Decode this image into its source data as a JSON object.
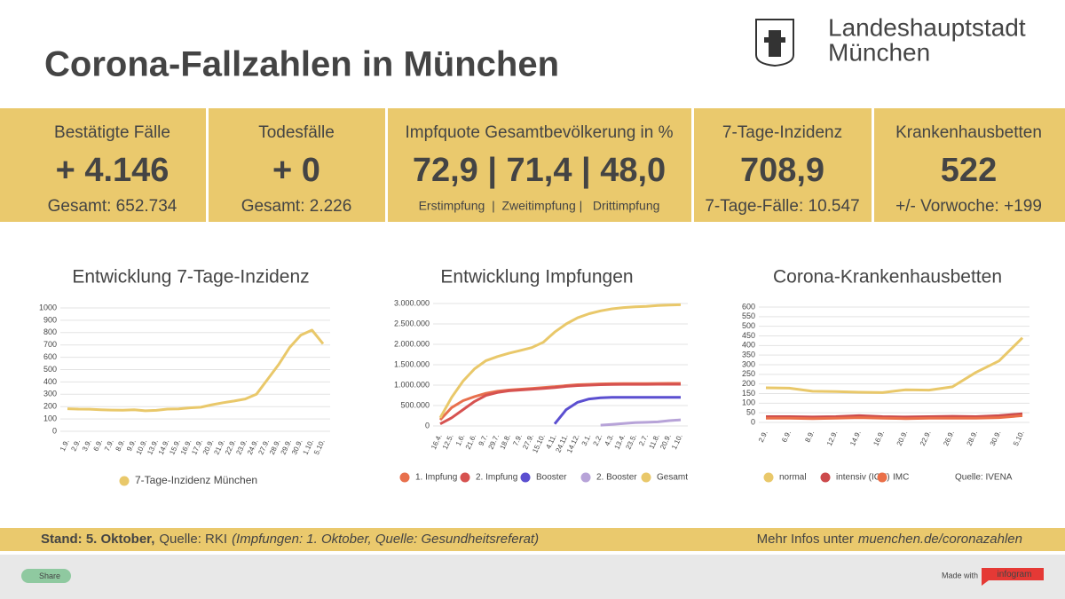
{
  "header": {
    "title": "Corona-Fallzahlen in München",
    "logo_line1": "Landeshauptstadt",
    "logo_line2": "München"
  },
  "kpis": [
    {
      "title": "Bestätigte Fälle",
      "value": "+ 4.146",
      "sub": "Gesamt: 652.734"
    },
    {
      "title": "Todesfälle",
      "value": "+ 0",
      "sub": "Gesamt: 2.226"
    },
    {
      "title": "Impfquote Gesamtbevölkerung in %",
      "value": "72,9 | 71,4 | 48,0",
      "sub": "Erstimpfung  |  Zweitimpfung |   Drittimpfung"
    },
    {
      "title": "7-Tage-Inzidenz",
      "value": "708,9",
      "sub": "7-Tage-Fälle: 10.547"
    },
    {
      "title": "Krankenhausbetten",
      "value": "522",
      "sub": "+/- Vorwoche: +199"
    }
  ],
  "chart_data": [
    {
      "type": "line",
      "title": "Entwicklung 7-Tage-Inzidenz",
      "categories": [
        "1.9.",
        "2.9.",
        "3.9.",
        "6.9.",
        "7.9.",
        "8.9.",
        "9.9.",
        "10.9.",
        "13.9.",
        "14.9.",
        "15.9.",
        "16.9.",
        "17.9.",
        "20.9.",
        "21.9.",
        "22.9.",
        "23.9.",
        "24.9.",
        "27.9.",
        "28.9.",
        "29.9.",
        "30.9.",
        "1.10.",
        "5.10."
      ],
      "series": [
        {
          "name": "7-Tage-Inzidenz München",
          "color": "#e9c86a",
          "values": [
            183,
            180,
            179,
            175,
            172,
            171,
            175,
            166,
            170,
            180,
            182,
            190,
            195,
            215,
            232,
            245,
            262,
            300,
            420,
            540,
            680,
            780,
            820,
            709
          ]
        }
      ],
      "ylim": [
        0,
        1000
      ],
      "yticks": [
        0,
        100,
        200,
        300,
        400,
        500,
        600,
        700,
        800,
        900,
        1000
      ],
      "grid": true
    },
    {
      "type": "line",
      "title": "Entwicklung Impfungen",
      "categories": [
        "16.4.",
        "12.5.",
        "1.6.",
        "21.6.",
        "9.7.",
        "29.7.",
        "18.8.",
        "7.9.",
        "27.9.",
        "15.10.",
        "4.11.",
        "24.11.",
        "14.12.",
        "3.1.",
        "2.2.",
        "4.3.",
        "13.4.",
        "23.5.",
        "2.7.",
        "11.8.",
        "20.9.",
        "1.10."
      ],
      "series": [
        {
          "name": "1. Impfung",
          "color": "#e8704d",
          "values": [
            150000,
            450000,
            620000,
            720000,
            800000,
            850000,
            880000,
            900000,
            920000,
            940000,
            960000,
            990000,
            1010000,
            1020000,
            1030000,
            1035000,
            1040000,
            1040000,
            1040000,
            1042000,
            1043000,
            1043000
          ]
        },
        {
          "name": "2. Impfung",
          "color": "#d65250",
          "values": [
            50000,
            200000,
            400000,
            600000,
            750000,
            820000,
            860000,
            880000,
            900000,
            920000,
            940000,
            970000,
            990000,
            1000000,
            1010000,
            1015000,
            1020000,
            1020000,
            1020000,
            1021000,
            1022000,
            1022000
          ]
        },
        {
          "name": "Booster",
          "color": "#5b4fd0",
          "values": [
            null,
            null,
            null,
            null,
            null,
            null,
            null,
            null,
            null,
            null,
            50000,
            400000,
            580000,
            660000,
            690000,
            700000,
            700000,
            700000,
            700000,
            700000,
            700000,
            700000
          ]
        },
        {
          "name": "2. Booster",
          "color": "#b7a3d8",
          "values": [
            null,
            null,
            null,
            null,
            null,
            null,
            null,
            null,
            null,
            null,
            null,
            null,
            null,
            null,
            20000,
            40000,
            60000,
            80000,
            90000,
            100000,
            130000,
            150000
          ]
        },
        {
          "name": "Gesamt",
          "color": "#e9c86a",
          "values": [
            200000,
            700000,
            1100000,
            1400000,
            1600000,
            1700000,
            1780000,
            1850000,
            1920000,
            2050000,
            2300000,
            2500000,
            2650000,
            2750000,
            2820000,
            2870000,
            2900000,
            2920000,
            2930000,
            2950000,
            2960000,
            2970000
          ]
        }
      ],
      "ylim": [
        0,
        3000000
      ],
      "yticks": [
        0,
        {
          "value": 500000,
          "label": "500.000"
        },
        {
          "value": 1000000,
          "label": "1.000.000"
        },
        {
          "value": 1500000,
          "label": "1.500.000"
        },
        {
          "value": 2000000,
          "label": "2.000.000"
        },
        {
          "value": 2500000,
          "label": "2.500.000"
        },
        {
          "value": 3000000,
          "label": "3.000.000"
        }
      ],
      "grid": true
    },
    {
      "type": "line",
      "title": "Corona-Krankenhausbetten",
      "categories": [
        "2.9.",
        "6.9.",
        "8.9.",
        "12.9.",
        "14.9.",
        "16.9.",
        "20.9.",
        "22.9.",
        "26.9.",
        "28.9.",
        "30.9.",
        "5.10."
      ],
      "series": [
        {
          "name": "normal",
          "color": "#e9c86a",
          "values": [
            180,
            178,
            162,
            160,
            157,
            155,
            170,
            168,
            185,
            260,
            320,
            440
          ]
        },
        {
          "name": "intensiv (ICU)",
          "color": "#cc4a4c",
          "values": [
            30,
            30,
            28,
            30,
            35,
            30,
            28,
            30,
            32,
            30,
            35,
            45
          ]
        },
        {
          "name": "IMC",
          "color": "#ea6f48",
          "values": [
            22,
            22,
            20,
            22,
            25,
            22,
            20,
            22,
            22,
            22,
            25,
            35
          ]
        }
      ],
      "annotation": "Quelle: IVENA",
      "ylim": [
        0,
        600
      ],
      "yticks": [
        0,
        50,
        100,
        150,
        200,
        250,
        300,
        350,
        400,
        450,
        500,
        550,
        600
      ],
      "grid": true
    }
  ],
  "footer": {
    "stand": "Stand: 5. Oktober,",
    "source": "Quelle: RKI",
    "note": "(Impfungen: 1. Oktober, Quelle: Gesundheitsreferat)",
    "more": "Mehr Infos unter",
    "link": "muenchen.de/coronazahlen"
  },
  "bottom": {
    "share": "Share",
    "made_with": "Made with",
    "brand": "infogram"
  }
}
